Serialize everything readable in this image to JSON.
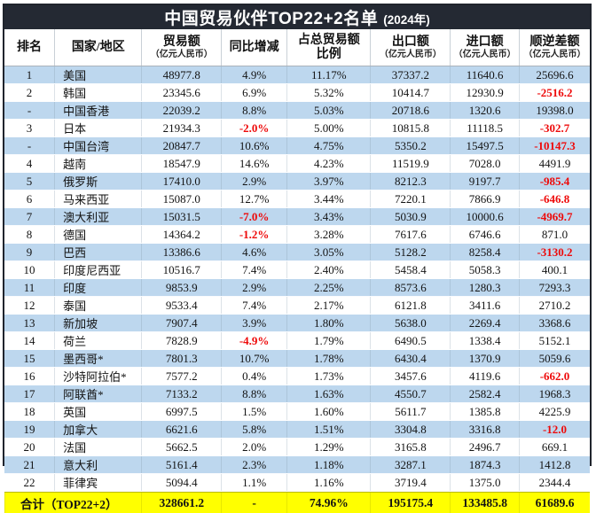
{
  "title": {
    "main": "中国贸易伙伴TOP22+2名单",
    "year": "(2024年)"
  },
  "unit_note": "（亿元人民币）",
  "colors": {
    "header_bg": "#242933",
    "stripe_blue": "#bdd7ee",
    "total_yellow": "#ffff00",
    "negative_red": "#ee0a0a"
  },
  "chart_data": {
    "type": "table",
    "title": "中国贸易伙伴TOP22+2名单 (2024年)",
    "columns": [
      {
        "label": "排名",
        "sub": "",
        "line2": ""
      },
      {
        "label": "国家/地区",
        "sub": "",
        "line2": ""
      },
      {
        "label": "贸易额",
        "sub": "（亿元人民币）",
        "line2": ""
      },
      {
        "label": "同比增减",
        "sub": "",
        "line2": ""
      },
      {
        "label": "占总贸易额",
        "sub": "",
        "line2": "比例"
      },
      {
        "label": "出口额",
        "sub": "（亿元人民币）",
        "line2": ""
      },
      {
        "label": "进口额",
        "sub": "（亿元人民币）",
        "line2": ""
      },
      {
        "label": "顺逆差额",
        "sub": "（亿元人民币）",
        "line2": ""
      }
    ],
    "rows": [
      [
        "1",
        "美国",
        "48977.8",
        "4.9%",
        "11.17%",
        "37337.2",
        "11640.6",
        "25696.6"
      ],
      [
        "2",
        "韩国",
        "23345.6",
        "6.9%",
        "5.32%",
        "10414.7",
        "12930.9",
        "-2516.2"
      ],
      [
        "-",
        "中国香港",
        "22039.2",
        "8.8%",
        "5.03%",
        "20718.6",
        "1320.6",
        "19398.0"
      ],
      [
        "3",
        "日本",
        "21934.3",
        "-2.0%",
        "5.00%",
        "10815.8",
        "11118.5",
        "-302.7"
      ],
      [
        "-",
        "中国台湾",
        "20847.7",
        "10.6%",
        "4.75%",
        "5350.2",
        "15497.5",
        "-10147.3"
      ],
      [
        "4",
        "越南",
        "18547.9",
        "14.6%",
        "4.23%",
        "11519.9",
        "7028.0",
        "4491.9"
      ],
      [
        "5",
        "俄罗斯",
        "17410.0",
        "2.9%",
        "3.97%",
        "8212.3",
        "9197.7",
        "-985.4"
      ],
      [
        "6",
        "马来西亚",
        "15087.0",
        "12.7%",
        "3.44%",
        "7220.1",
        "7866.9",
        "-646.8"
      ],
      [
        "7",
        "澳大利亚",
        "15031.5",
        "-7.0%",
        "3.43%",
        "5030.9",
        "10000.6",
        "-4969.7"
      ],
      [
        "8",
        "德国",
        "14364.2",
        "-1.2%",
        "3.28%",
        "7617.6",
        "6746.6",
        "871.0"
      ],
      [
        "9",
        "巴西",
        "13386.6",
        "4.6%",
        "3.05%",
        "5128.2",
        "8258.4",
        "-3130.2"
      ],
      [
        "10",
        "印度尼西亚",
        "10516.7",
        "7.4%",
        "2.40%",
        "5458.4",
        "5058.3",
        "400.1"
      ],
      [
        "11",
        "印度",
        "9853.9",
        "2.9%",
        "2.25%",
        "8573.6",
        "1280.3",
        "7293.3"
      ],
      [
        "12",
        "泰国",
        "9533.4",
        "7.4%",
        "2.17%",
        "6121.8",
        "3411.6",
        "2710.2"
      ],
      [
        "13",
        "新加坡",
        "7907.4",
        "3.9%",
        "1.80%",
        "5638.0",
        "2269.4",
        "3368.6"
      ],
      [
        "14",
        "荷兰",
        "7828.9",
        "-4.9%",
        "1.79%",
        "6490.5",
        "1338.4",
        "5152.1"
      ],
      [
        "15",
        "墨西哥*",
        "7801.3",
        "10.7%",
        "1.78%",
        "6430.4",
        "1370.9",
        "5059.6"
      ],
      [
        "16",
        "沙特阿拉伯*",
        "7577.2",
        "0.4%",
        "1.73%",
        "3457.6",
        "4119.6",
        "-662.0"
      ],
      [
        "17",
        "阿联酋*",
        "7133.2",
        "8.8%",
        "1.63%",
        "4550.7",
        "2582.4",
        "1968.3"
      ],
      [
        "18",
        "英国",
        "6997.5",
        "1.5%",
        "1.60%",
        "5611.7",
        "1385.8",
        "4225.9"
      ],
      [
        "19",
        "加拿大",
        "6621.6",
        "5.8%",
        "1.51%",
        "3304.8",
        "3316.8",
        "-12.0"
      ],
      [
        "20",
        "法国",
        "5662.5",
        "2.0%",
        "1.29%",
        "3165.8",
        "2496.7",
        "669.1"
      ],
      [
        "21",
        "意大利",
        "5161.4",
        "2.3%",
        "1.18%",
        "3287.1",
        "1874.3",
        "1412.8"
      ],
      [
        "22",
        "菲律宾",
        "5094.4",
        "1.1%",
        "1.16%",
        "3719.4",
        "1375.0",
        "2344.4"
      ]
    ],
    "total_row": {
      "label": "合计（TOP22+2）",
      "trade": "328661.2",
      "yoy": "-",
      "share": "74.96%",
      "export": "195175.4",
      "import": "133485.8",
      "balance": "61689.6"
    }
  }
}
